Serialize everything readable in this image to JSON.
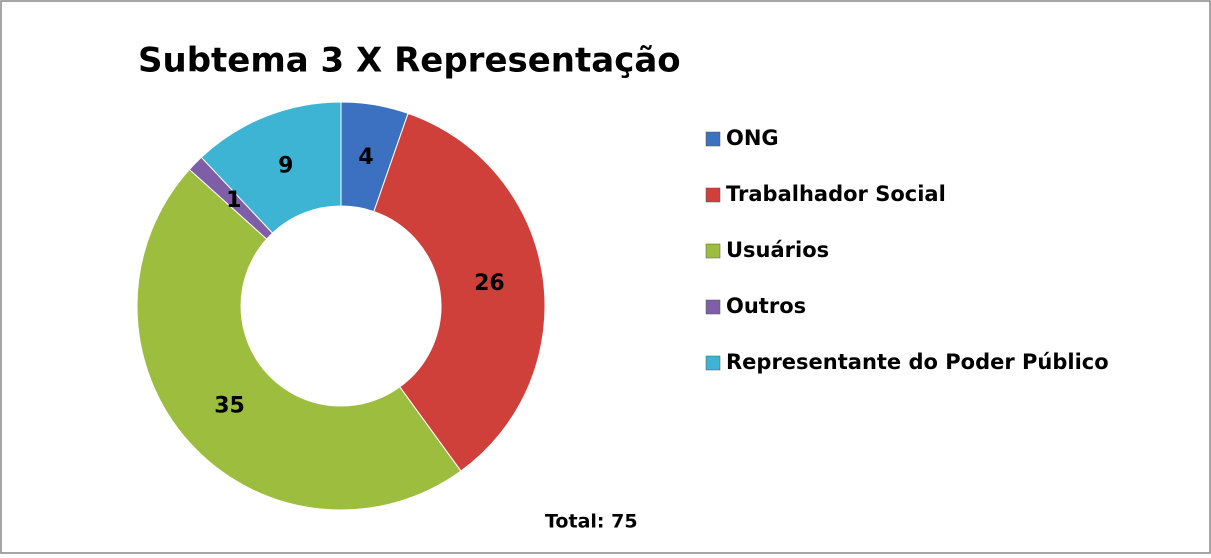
{
  "chart_data": {
    "type": "donut",
    "title": "Subtema 3 X Representação",
    "categories": [
      "ONG",
      "Trabalhador Social",
      "Usuários",
      "Outros",
      "Representante do Poder Público"
    ],
    "values": [
      4,
      26,
      35,
      1,
      9
    ],
    "colors": [
      "#3c70c0",
      "#d0403b",
      "#9dbd3f",
      "#7f5ea8",
      "#3db4d3"
    ],
    "legend": "right",
    "annotation": "Total: 75"
  }
}
